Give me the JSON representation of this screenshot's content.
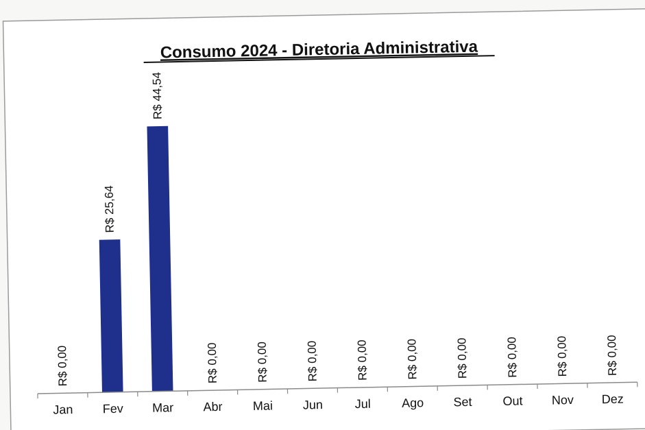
{
  "chart_data": {
    "type": "bar",
    "title": "Consumo 2024 - Diretoria Administrativa",
    "xlabel": "",
    "ylabel": "",
    "categories": [
      "Jan",
      "Fev",
      "Mar",
      "Abr",
      "Mai",
      "Jun",
      "Jul",
      "Ago",
      "Set",
      "Out",
      "Nov",
      "Dez"
    ],
    "values": [
      0.0,
      25.64,
      44.54,
      0.0,
      0.0,
      0.0,
      0.0,
      0.0,
      0.0,
      0.0,
      0.0,
      0.0
    ],
    "data_labels": [
      "R$ 0,00",
      "R$ 25,64",
      "R$ 44,54",
      "R$ 0,00",
      "R$ 0,00",
      "R$ 0,00",
      "R$ 0,00",
      "R$ 0,00",
      "R$ 0,00",
      "R$ 0,00",
      "R$ 0,00",
      "R$ 0,00"
    ],
    "ylim": [
      0,
      56
    ],
    "grid": false,
    "legend": "none",
    "bar_color": "#1f2f8c",
    "axis_color": "#888888"
  }
}
